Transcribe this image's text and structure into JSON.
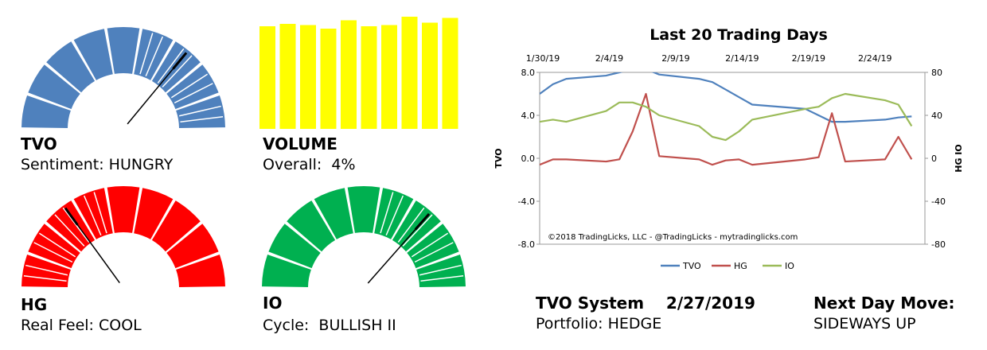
{
  "tvo": {
    "title": "TVO",
    "label": "Sentiment:",
    "value": "HUNGRY",
    "color": "#4f81bd",
    "reading": 0.72,
    "highlight_from": 5
  },
  "volume": {
    "title": "VOLUME",
    "label": "Overall:",
    "value": "4%",
    "color": "#ffff00",
    "bars": [
      0.86,
      0.88,
      0.87,
      0.84,
      0.91,
      0.86,
      0.87,
      0.94,
      0.89,
      0.93
    ]
  },
  "hg": {
    "title": "HG",
    "label": "Real Feel:",
    "value": "COOL",
    "color": "#ff0000",
    "reading": 0.3,
    "highlight_upto": 3
  },
  "io": {
    "title": "IO",
    "label": "Cycle:",
    "value": "BULLISH II",
    "color": "#00b050",
    "reading": 0.73,
    "highlight_from": 5
  },
  "system": {
    "title": "TVO System",
    "date": "2/27/2019",
    "portfolio_label": "Portfolio:",
    "portfolio_value": "HEDGE"
  },
  "next_day": {
    "title": "Next Day Move:",
    "value": "SIDEWAYS UP"
  },
  "chart_data": {
    "type": "line",
    "title": "Last 20 Trading Days",
    "ylabel_left": "TVO",
    "ylabel_right": "HG IO",
    "ylim_left": [
      -8,
      8
    ],
    "ylim_right": [
      -80,
      80
    ],
    "yticks_left": [
      "8.0",
      "4.0",
      "0.0",
      "-4.0",
      "-8.0"
    ],
    "yticks_right": [
      "80",
      "40",
      "0",
      "-40",
      "-80"
    ],
    "xtick_labels": [
      "1/30/19",
      "2/4/19",
      "2/9/19",
      "2/14/19",
      "2/19/19",
      "2/24/19"
    ],
    "x": [
      "1/30/19",
      "1/31/19",
      "2/1/19",
      "2/4/19",
      "2/5/19",
      "2/6/19",
      "2/7/19",
      "2/8/19",
      "2/11/19",
      "2/12/19",
      "2/13/19",
      "2/14/19",
      "2/15/19",
      "2/19/19",
      "2/20/19",
      "2/21/19",
      "2/22/19",
      "2/25/19",
      "2/26/19",
      "2/27/19"
    ],
    "x_days": [
      0,
      1,
      2,
      5,
      6,
      7,
      8,
      9,
      12,
      13,
      14,
      15,
      16,
      20,
      21,
      22,
      23,
      26,
      27,
      28
    ],
    "series": [
      {
        "name": "TVO",
        "axis": "left",
        "color": "#4f81bd",
        "values": [
          6.0,
          6.9,
          7.4,
          7.7,
          8.0,
          8.3,
          8.3,
          7.8,
          7.4,
          7.1,
          6.4,
          5.7,
          5.0,
          4.6,
          4.0,
          3.4,
          3.4,
          3.6,
          3.8,
          3.9
        ]
      },
      {
        "name": "HG",
        "axis": "right",
        "color": "#c0504d",
        "values": [
          -6,
          -1,
          -1,
          -3,
          -1,
          25,
          60,
          2,
          -1,
          -6,
          -2,
          -1,
          -6,
          -1,
          1,
          42,
          -3,
          -1,
          20,
          -1
        ]
      },
      {
        "name": "IO",
        "axis": "right",
        "color": "#9bbb59",
        "values": [
          34,
          36,
          34,
          44,
          52,
          52,
          48,
          40,
          30,
          20,
          17,
          25,
          36,
          46,
          48,
          56,
          60,
          54,
          50,
          30
        ]
      }
    ],
    "legend_position": "bottom",
    "annotation": "©2018 TradingLicks, LLC - @TradingLicks - mytradinglicks.com"
  }
}
